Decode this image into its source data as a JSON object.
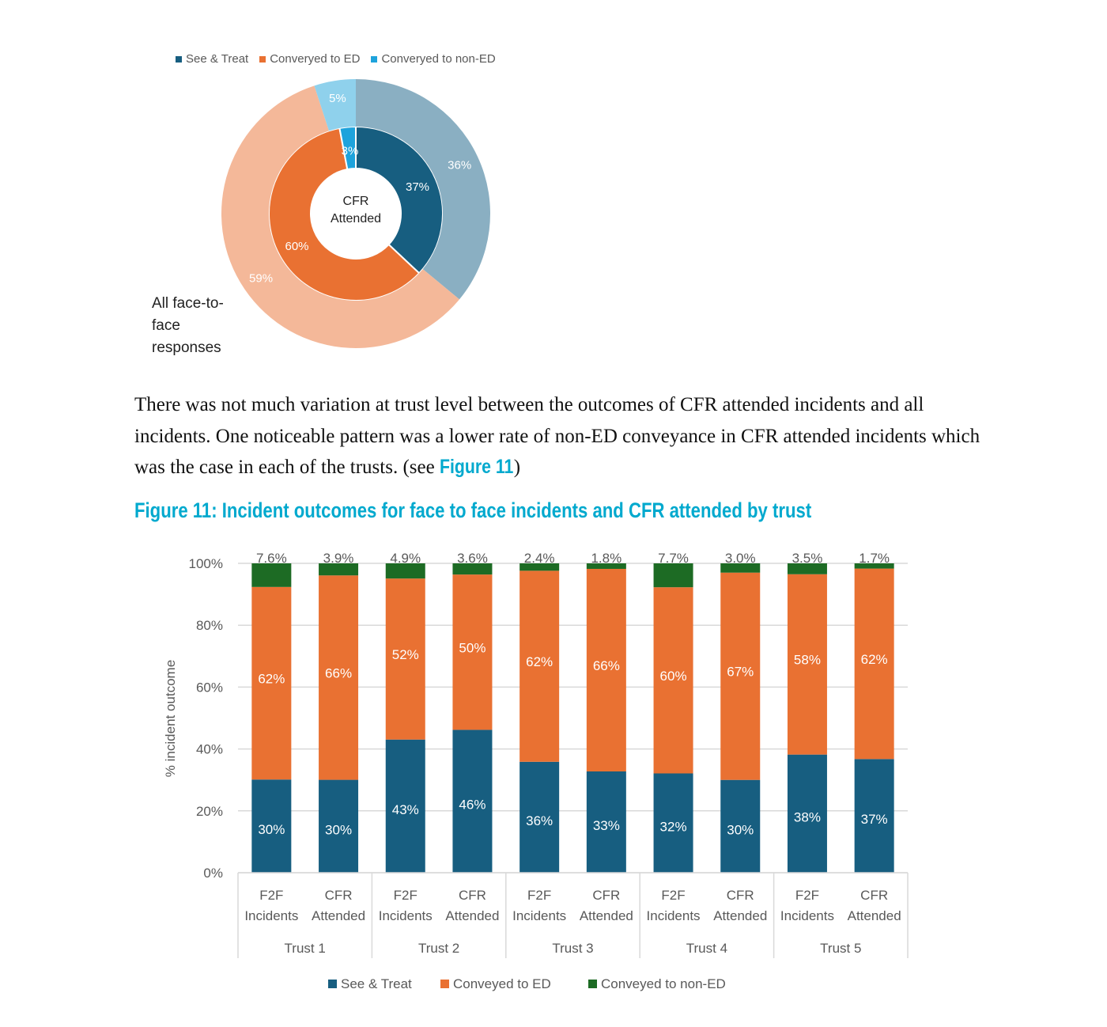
{
  "colors": {
    "see_treat": "#175e80",
    "conveyed_ed": "#e97132",
    "conveyed_non_ed_bar": "#1d6b24",
    "conveyed_non_ed_donut": "#1ea3dc",
    "outer_see_treat": "#8aafc2",
    "outer_ed": "#f4b899",
    "outer_non_ed": "#8fd1ec",
    "accent": "#00a9ce"
  },
  "paragraph": {
    "text": "There was not much variation at trust level between the outcomes of CFR attended incidents and all incidents. One noticeable pattern was a lower rate of non-ED conveyance in CFR attended incidents which was the case in each of the trusts. (see ",
    "link": "Figure 11",
    "end": ")"
  },
  "chart_data": [
    {
      "type": "pie",
      "variant": "double-donut",
      "legend": [
        "See & Treat",
        "Converyed to ED",
        "Converyed to non-ED"
      ],
      "legend_placement": "top",
      "center_label": [
        "CFR",
        "Attended"
      ],
      "outer_label": [
        "All face-to-",
        "face",
        "responses"
      ],
      "rings": [
        {
          "name": "CFR Attended",
          "values": [
            37,
            60,
            3
          ],
          "labels": [
            "37%",
            "60%",
            "3%"
          ]
        },
        {
          "name": "All face-to-face responses",
          "values": [
            36,
            59,
            5
          ],
          "labels": [
            "36%",
            "59%",
            "5%"
          ]
        }
      ]
    },
    {
      "type": "bar",
      "stacked": true,
      "title": "Figure 11: Incident outcomes for face to face incidents and CFR attended by trust",
      "ylabel": "% incident outcome",
      "ylim": [
        0,
        100
      ],
      "yticks": [
        "0%",
        "20%",
        "40%",
        "60%",
        "80%",
        "100%"
      ],
      "grid": true,
      "legend": [
        "See & Treat",
        "Conveyed to ED",
        "Conveyed to non-ED"
      ],
      "legend_placement": "bottom",
      "groups": [
        "Trust 1",
        "Trust 2",
        "Trust 3",
        "Trust 4",
        "Trust 5"
      ],
      "categories": [
        [
          "F2F",
          "Incidents"
        ],
        [
          "CFR",
          "Attended"
        ],
        [
          "F2F",
          "Incidents"
        ],
        [
          "CFR",
          "Attended"
        ],
        [
          "F2F",
          "Incidents"
        ],
        [
          "CFR",
          "Attended"
        ],
        [
          "F2F",
          "Incidents"
        ],
        [
          "CFR",
          "Attended"
        ],
        [
          "F2F",
          "Incidents"
        ],
        [
          "CFR",
          "Attended"
        ]
      ],
      "series": [
        {
          "name": "See & Treat",
          "values": [
            30,
            30,
            43,
            46,
            36,
            33,
            32,
            30,
            38,
            37
          ],
          "labels": [
            "30%",
            "30%",
            "43%",
            "46%",
            "36%",
            "33%",
            "32%",
            "30%",
            "38%",
            "37%"
          ]
        },
        {
          "name": "Conveyed to ED",
          "values": [
            62,
            66,
            52,
            50,
            62,
            66,
            60,
            67,
            58,
            62
          ],
          "labels": [
            "62%",
            "66%",
            "52%",
            "50%",
            "62%",
            "66%",
            "60%",
            "67%",
            "58%",
            "62%"
          ]
        },
        {
          "name": "Conveyed to non-ED",
          "values": [
            7.6,
            3.9,
            4.9,
            3.6,
            2.4,
            1.8,
            7.7,
            3.0,
            3.5,
            1.7
          ],
          "labels": [
            "7.6%",
            "3.9%",
            "4.9%",
            "3.6%",
            "2.4%",
            "1.8%",
            "7.7%",
            "3.0%",
            "3.5%",
            "1.7%"
          ]
        }
      ]
    }
  ]
}
